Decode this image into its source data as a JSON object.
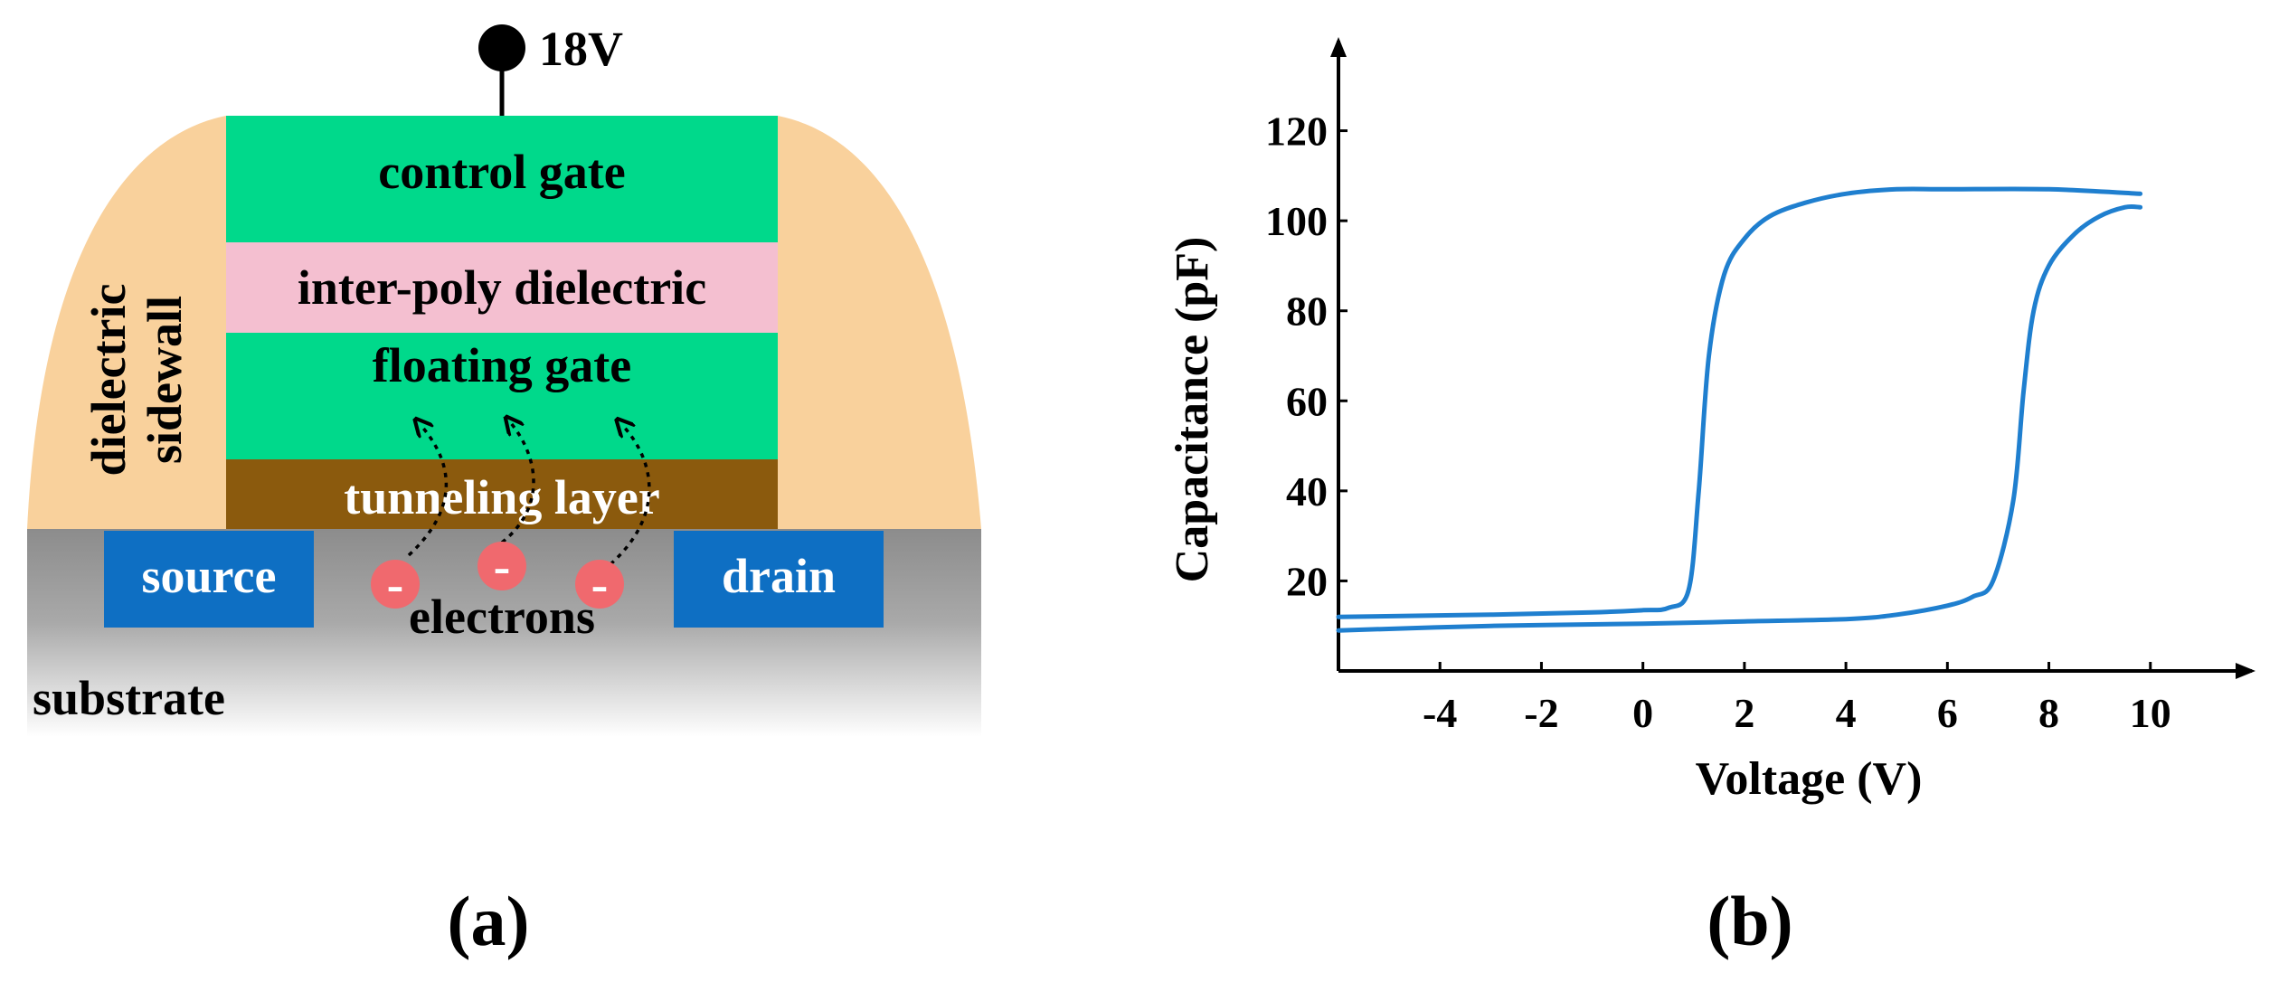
{
  "panel_a": {
    "label": "(a)",
    "voltage_label": "18V",
    "layers": {
      "control_gate": "control gate",
      "inter_poly_dielectric": "inter-poly dielectric",
      "floating_gate": "floating gate",
      "tunneling_layer": "tunneling layer"
    },
    "sidewall_lines": [
      "dielectric",
      "sidewall"
    ],
    "source": "source",
    "drain": "drain",
    "substrate": "substrate",
    "electrons": "electrons",
    "electron_symbol": "-",
    "colors": {
      "gate": "#00d98b",
      "ipd": "#f4bfd0",
      "tunneling": "#8b5a0d",
      "sidewall": "#f9d19c",
      "source_drain": "#0e6fc3",
      "substrate_top": "#8c8c8c",
      "substrate_bottom": "#ffffff",
      "electron": "#f0696e"
    }
  },
  "panel_b": {
    "label": "(b)",
    "chart_data": {
      "type": "line",
      "xlabel": "Voltage (V)",
      "ylabel": "Capacitance (pF)",
      "xlim": [
        -6,
        12
      ],
      "ylim": [
        0,
        140
      ],
      "xticks": [
        -4,
        -2,
        0,
        2,
        4,
        6,
        8,
        10
      ],
      "yticks": [
        20,
        40,
        60,
        80,
        100,
        120
      ],
      "grid": false,
      "color": "#1f7fcf",
      "series": [
        {
          "x": [
            -6,
            -3,
            -1,
            0,
            0.5,
            0.9,
            1.1,
            1.3,
            1.6,
            2.0,
            2.5,
            3.2,
            4.0,
            5.0,
            6.0,
            8.0,
            9.8
          ],
          "values": [
            12,
            12.5,
            13,
            13.5,
            14,
            18,
            40,
            70,
            88,
            96,
            101,
            104,
            106,
            107,
            107,
            107,
            106
          ]
        },
        {
          "x": [
            -6,
            -3,
            0,
            2,
            4,
            5,
            6,
            6.5,
            6.9,
            7.3,
            7.5,
            7.7,
            8.0,
            8.5,
            9.0,
            9.5,
            9.8
          ],
          "values": [
            9,
            10,
            10.5,
            11,
            11.5,
            12.5,
            14.5,
            16.5,
            20,
            38,
            62,
            80,
            90,
            97,
            101,
            103,
            103
          ]
        }
      ]
    }
  }
}
